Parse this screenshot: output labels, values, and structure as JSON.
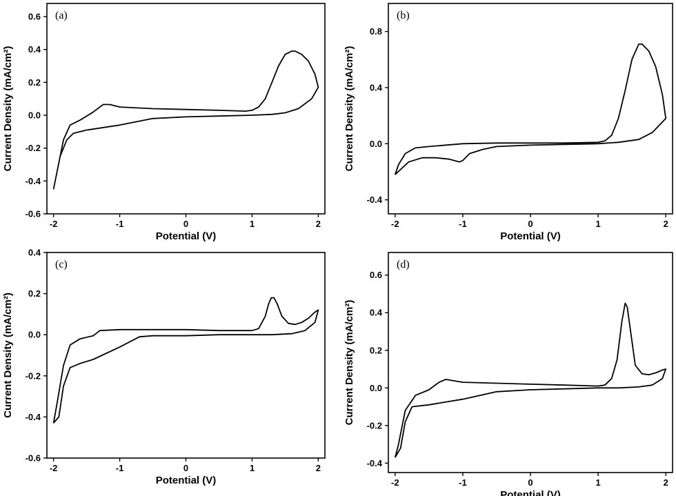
{
  "chart_data": [
    {
      "type": "line",
      "label": "(a)",
      "xlabel": "Potential (V)",
      "ylabel": "Current Density (mA/cm²)",
      "xlim": [
        -2.1,
        2.1
      ],
      "ylim": [
        -0.6,
        0.68
      ],
      "xticks": [
        -2,
        -1,
        0,
        1,
        2
      ],
      "yticks": [
        -0.6,
        -0.4,
        -0.2,
        0.0,
        0.2,
        0.4,
        0.6
      ],
      "xtick_labels": [
        "-2",
        "-1",
        "0",
        "1",
        "2"
      ],
      "ytick_labels": [
        "-0.6",
        "-0.4",
        "-0.2",
        "0.0",
        "0.2",
        "0.4",
        "0.6"
      ],
      "series": [
        {
          "x": [
            -2.0,
            -1.9,
            -1.8,
            -1.7,
            -1.5,
            -1.0,
            -0.5,
            0.0,
            0.5,
            1.0,
            1.3,
            1.5,
            1.7,
            1.9,
            2.0,
            1.95,
            1.85,
            1.75,
            1.65,
            1.6,
            1.5,
            1.4,
            1.3,
            1.2,
            1.1,
            1.0,
            0.9,
            0.5,
            0.0,
            -0.5,
            -1.0,
            -1.15,
            -1.25,
            -1.4,
            -1.6,
            -1.75,
            -1.85,
            -1.95,
            -2.0
          ],
          "y": [
            -0.45,
            -0.25,
            -0.15,
            -0.11,
            -0.09,
            -0.06,
            -0.02,
            -0.01,
            -0.005,
            0.0,
            0.005,
            0.015,
            0.04,
            0.1,
            0.17,
            0.25,
            0.33,
            0.37,
            0.39,
            0.39,
            0.37,
            0.3,
            0.2,
            0.1,
            0.05,
            0.03,
            0.025,
            0.03,
            0.035,
            0.04,
            0.05,
            0.065,
            0.065,
            0.02,
            -0.03,
            -0.06,
            -0.15,
            -0.35,
            -0.45
          ]
        }
      ]
    },
    {
      "type": "line",
      "label": "(b)",
      "xlabel": "Potential (V)",
      "ylabel": "Current Density (mA/cm²)",
      "xlim": [
        -2.1,
        2.1
      ],
      "ylim": [
        -0.5,
        1.0
      ],
      "xticks": [
        -2,
        -1,
        0,
        1,
        2
      ],
      "yticks": [
        -0.4,
        0.0,
        0.4,
        0.8
      ],
      "xtick_labels": [
        "-2",
        "-1",
        "0",
        "1",
        "2"
      ],
      "ytick_labels": [
        "-0.4",
        "0.0",
        "0.4",
        "0.8"
      ],
      "series": [
        {
          "x": [
            -2.0,
            -1.8,
            -1.6,
            -1.4,
            -1.2,
            -1.05,
            -1.0,
            -0.9,
            -0.7,
            -0.5,
            0.0,
            0.5,
            1.0,
            1.3,
            1.6,
            1.8,
            2.0,
            1.95,
            1.85,
            1.75,
            1.65,
            1.6,
            1.5,
            1.4,
            1.3,
            1.2,
            1.1,
            1.0,
            0.5,
            0.0,
            -0.5,
            -1.0,
            -1.5,
            -1.7,
            -1.85,
            -1.95,
            -2.0
          ],
          "y": [
            -0.22,
            -0.13,
            -0.1,
            -0.1,
            -0.11,
            -0.13,
            -0.12,
            -0.07,
            -0.04,
            -0.02,
            -0.01,
            -0.005,
            0.0,
            0.01,
            0.03,
            0.08,
            0.18,
            0.35,
            0.55,
            0.66,
            0.71,
            0.71,
            0.6,
            0.38,
            0.18,
            0.06,
            0.02,
            0.01,
            0.005,
            0.005,
            0.005,
            0.0,
            -0.02,
            -0.03,
            -0.07,
            -0.15,
            -0.22
          ]
        }
      ]
    },
    {
      "type": "line",
      "label": "(c)",
      "xlabel": "Potential (V)",
      "ylabel": "Current Density (mA/cm²)",
      "xlim": [
        -2.1,
        2.1
      ],
      "ylim": [
        -0.6,
        0.4
      ],
      "xticks": [
        -2,
        -1,
        0,
        1,
        2
      ],
      "yticks": [
        -0.6,
        -0.4,
        -0.2,
        0.0,
        0.2,
        0.4
      ],
      "xtick_labels": [
        "-2",
        "-1",
        "0",
        "1",
        "2"
      ],
      "ytick_labels": [
        "-0.6",
        "-0.4",
        "-0.2",
        "0.0",
        "0.2",
        "0.4"
      ],
      "series": [
        {
          "x": [
            -2.0,
            -1.92,
            -1.85,
            -1.75,
            -1.6,
            -1.4,
            -1.2,
            -1.0,
            -0.7,
            -0.5,
            0.0,
            0.5,
            1.0,
            1.3,
            1.6,
            1.8,
            1.95,
            2.0,
            1.95,
            1.85,
            1.75,
            1.65,
            1.55,
            1.45,
            1.38,
            1.33,
            1.29,
            1.25,
            1.2,
            1.1,
            1.0,
            0.5,
            0.0,
            -0.5,
            -1.0,
            -1.3,
            -1.4,
            -1.6,
            -1.75,
            -1.85,
            -1.95,
            -2.0
          ],
          "y": [
            -0.43,
            -0.4,
            -0.25,
            -0.16,
            -0.14,
            -0.12,
            -0.09,
            -0.06,
            -0.01,
            -0.005,
            -0.005,
            0.0,
            0.0,
            0.0,
            0.005,
            0.02,
            0.06,
            0.12,
            0.11,
            0.08,
            0.06,
            0.05,
            0.055,
            0.09,
            0.15,
            0.18,
            0.18,
            0.15,
            0.09,
            0.03,
            0.02,
            0.02,
            0.025,
            0.025,
            0.025,
            0.02,
            -0.005,
            -0.02,
            -0.05,
            -0.15,
            -0.34,
            -0.43
          ]
        }
      ]
    },
    {
      "type": "line",
      "label": "(d)",
      "xlabel": "Potential (V)",
      "ylabel": "Current Density (mA/cm²)",
      "xlim": [
        -2.1,
        2.1
      ],
      "ylim": [
        -0.45,
        0.72
      ],
      "xticks": [
        -2,
        -1,
        0,
        1,
        2
      ],
      "yticks": [
        -0.4,
        -0.2,
        0.0,
        0.2,
        0.4,
        0.6
      ],
      "xtick_labels": [
        "-2",
        "-1",
        "0",
        "1",
        "2"
      ],
      "ytick_labels": [
        "-0.4",
        "-0.2",
        "0.0",
        "0.2",
        "0.4",
        "0.6"
      ],
      "series": [
        {
          "x": [
            -2.0,
            -1.92,
            -1.85,
            -1.75,
            -1.5,
            -1.0,
            -0.5,
            0.0,
            0.5,
            1.0,
            1.3,
            1.6,
            1.8,
            1.95,
            2.0,
            1.95,
            1.85,
            1.75,
            1.65,
            1.55,
            1.48,
            1.43,
            1.4,
            1.35,
            1.28,
            1.2,
            1.1,
            1.0,
            0.5,
            0.0,
            -0.5,
            -1.0,
            -1.25,
            -1.35,
            -1.5,
            -1.7,
            -1.85,
            -1.95,
            -2.0
          ],
          "y": [
            -0.37,
            -0.32,
            -0.18,
            -0.1,
            -0.09,
            -0.06,
            -0.02,
            -0.01,
            -0.005,
            0.0,
            0.0,
            0.005,
            0.015,
            0.05,
            0.1,
            0.095,
            0.08,
            0.07,
            0.075,
            0.12,
            0.3,
            0.43,
            0.45,
            0.35,
            0.15,
            0.05,
            0.015,
            0.01,
            0.015,
            0.02,
            0.025,
            0.03,
            0.045,
            0.03,
            -0.01,
            -0.04,
            -0.12,
            -0.3,
            -0.37
          ]
        }
      ]
    }
  ]
}
